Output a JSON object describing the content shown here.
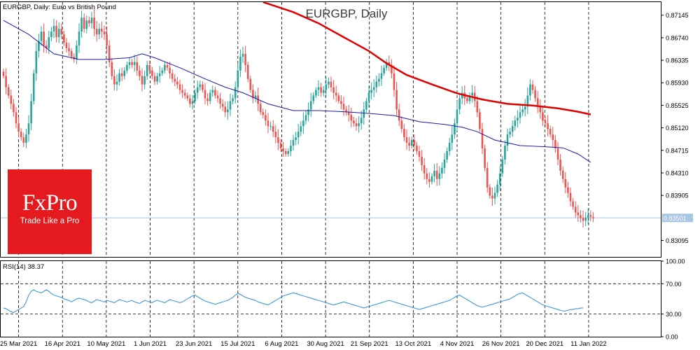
{
  "chart_data": {
    "type": "candlestick",
    "title": "EURGBP, Daily",
    "symbol_info": "EURGBP, Daily:  Euro vs British Pound",
    "y_axis_ticks": [
      "0.87145",
      "0.86740",
      "0.86335",
      "0.85930",
      "0.85525",
      "0.85120",
      "0.84715",
      "0.84310",
      "0.83905",
      "0.83501",
      "0.83095"
    ],
    "y_axis_tick_values": [
      0.87145,
      0.8674,
      0.86335,
      0.8593,
      0.85525,
      0.8512,
      0.84715,
      0.8431,
      0.83905,
      0.83501,
      0.83095
    ],
    "ylim": [
      0.828,
      0.8738
    ],
    "current_price": "0.83501",
    "current_price_value": 0.83501,
    "x_ticks": [
      "25 Mar 2021",
      "16 Apr 2021",
      "10 May 2021",
      "1 Jun 2021",
      "23 Jun 2021",
      "15 Jul 2021",
      "6 Aug 2021",
      "30 Aug 2021",
      "21 Sep 2021",
      "13 Oct 2021",
      "4 Nov 2021",
      "26 Nov 2021",
      "20 Dec 2021",
      "11 Jan 2022"
    ],
    "colors": {
      "up": "#26a69a",
      "down": "#ef5350",
      "ma_fast": "#1a1aa8",
      "ma_slow": "#e00000",
      "rsi": "#2b8fd8",
      "grid": "#000000",
      "price_line": "#a8c6e4",
      "price_label_bg": "#a8c6e4"
    },
    "closes": [
      0.8605,
      0.8585,
      0.857,
      0.8555,
      0.854,
      0.852,
      0.8505,
      0.8495,
      0.8485,
      0.85,
      0.852,
      0.856,
      0.861,
      0.865,
      0.8668,
      0.8685,
      0.866,
      0.8655,
      0.8675,
      0.8685,
      0.8695,
      0.8675,
      0.869,
      0.868,
      0.8665,
      0.8655,
      0.865,
      0.864,
      0.8635,
      0.866,
      0.8685,
      0.871,
      0.869,
      0.8705,
      0.87,
      0.871,
      0.869,
      0.868,
      0.869,
      0.8685,
      0.868,
      0.866,
      0.863,
      0.8605,
      0.859,
      0.8595,
      0.861,
      0.8605,
      0.8615,
      0.8625,
      0.863,
      0.8625,
      0.863,
      0.8615,
      0.8605,
      0.859,
      0.8605,
      0.8625,
      0.8615,
      0.8605,
      0.8595,
      0.8605,
      0.861,
      0.8615,
      0.8625,
      0.862,
      0.861,
      0.86,
      0.8595,
      0.859,
      0.858,
      0.8575,
      0.857,
      0.8565,
      0.8555,
      0.856,
      0.8575,
      0.8585,
      0.859,
      0.858,
      0.8565,
      0.856,
      0.8575,
      0.858,
      0.857,
      0.8565,
      0.8555,
      0.855,
      0.854,
      0.8545,
      0.856,
      0.8565,
      0.8585,
      0.8615,
      0.864,
      0.8645,
      0.8625,
      0.86,
      0.858,
      0.8565,
      0.857,
      0.8555,
      0.854,
      0.8535,
      0.8525,
      0.8515,
      0.8515,
      0.8505,
      0.8495,
      0.8485,
      0.8475,
      0.847,
      0.8465,
      0.847,
      0.848,
      0.849,
      0.8495,
      0.8505,
      0.8515,
      0.8525,
      0.8535,
      0.8545,
      0.856,
      0.857,
      0.858,
      0.8585,
      0.8575,
      0.858,
      0.859,
      0.8595,
      0.8585,
      0.8575,
      0.857,
      0.856,
      0.8555,
      0.8545,
      0.854,
      0.8535,
      0.8525,
      0.852,
      0.8515,
      0.852,
      0.853,
      0.8545,
      0.856,
      0.8575,
      0.858,
      0.8585,
      0.8595,
      0.86,
      0.861,
      0.862,
      0.863,
      0.8625,
      0.861,
      0.858,
      0.8545,
      0.8525,
      0.851,
      0.8495,
      0.8485,
      0.848,
      0.849,
      0.848,
      0.847,
      0.846,
      0.8445,
      0.843,
      0.842,
      0.8415,
      0.8425,
      0.8435,
      0.842,
      0.843,
      0.844,
      0.8455,
      0.847,
      0.8485,
      0.85,
      0.852,
      0.8545,
      0.8565,
      0.8575,
      0.8565,
      0.856,
      0.857,
      0.8575,
      0.856,
      0.854,
      0.851,
      0.8475,
      0.844,
      0.8405,
      0.839,
      0.8385,
      0.8395,
      0.841,
      0.843,
      0.8455,
      0.848,
      0.85,
      0.8505,
      0.8515,
      0.8525,
      0.853,
      0.854,
      0.8545,
      0.855,
      0.857,
      0.859,
      0.858,
      0.8565,
      0.855,
      0.854,
      0.8525,
      0.852,
      0.851,
      0.85,
      0.849,
      0.8475,
      0.8455,
      0.8435,
      0.842,
      0.8405,
      0.8395,
      0.838,
      0.837,
      0.836,
      0.8355,
      0.835,
      0.8345,
      0.835,
      0.8355,
      0.8352,
      0.835
    ],
    "ma_fast": [
      [
        0,
        0.8705
      ],
      [
        10,
        0.868
      ],
      [
        20,
        0.8645
      ],
      [
        30,
        0.8635
      ],
      [
        40,
        0.8635
      ],
      [
        50,
        0.8638
      ],
      [
        55,
        0.8645
      ],
      [
        60,
        0.8638
      ],
      [
        70,
        0.862
      ],
      [
        80,
        0.86
      ],
      [
        88,
        0.8585
      ],
      [
        95,
        0.8575
      ],
      [
        105,
        0.8555
      ],
      [
        115,
        0.8543
      ],
      [
        125,
        0.8543
      ],
      [
        135,
        0.8541
      ],
      [
        145,
        0.8538
      ],
      [
        155,
        0.8534
      ],
      [
        165,
        0.8523
      ],
      [
        175,
        0.8518
      ],
      [
        182,
        0.8513
      ],
      [
        188,
        0.8505
      ],
      [
        195,
        0.849
      ],
      [
        205,
        0.848
      ],
      [
        215,
        0.8478
      ],
      [
        222,
        0.8476
      ],
      [
        228,
        0.8465
      ],
      [
        233,
        0.845
      ]
    ],
    "ma_slow": [
      [
        103,
        0.8738
      ],
      [
        115,
        0.872
      ],
      [
        125,
        0.87
      ],
      [
        135,
        0.8675
      ],
      [
        145,
        0.865
      ],
      [
        152,
        0.8628
      ],
      [
        160,
        0.8607
      ],
      [
        170,
        0.859
      ],
      [
        180,
        0.8574
      ],
      [
        190,
        0.8563
      ],
      [
        200,
        0.8555
      ],
      [
        210,
        0.8552
      ],
      [
        220,
        0.8547
      ],
      [
        228,
        0.8541
      ],
      [
        233,
        0.8536
      ]
    ],
    "rsi": {
      "label": "RSI(14) 38.37",
      "value": 38.37,
      "levels": [
        70,
        30
      ],
      "ticks": [
        "100.00",
        "70.00",
        "30.00",
        "0.00"
      ],
      "tick_values": [
        100,
        70,
        30,
        0
      ],
      "ylim": [
        0,
        100
      ],
      "values": [
        38,
        37,
        35,
        33,
        32,
        34,
        36,
        38,
        40,
        46,
        55,
        60,
        62,
        60,
        59,
        58,
        60,
        62,
        60,
        57,
        55,
        54,
        53,
        52,
        50,
        49,
        48,
        46,
        48,
        50,
        51,
        50,
        49,
        48,
        46,
        45,
        47,
        49,
        48,
        47,
        46,
        48,
        47,
        46,
        45,
        47,
        49,
        48,
        47,
        46,
        47,
        48,
        46,
        45,
        44,
        46,
        48,
        47,
        46,
        45,
        47,
        48,
        47,
        46,
        45,
        47,
        49,
        48,
        47,
        46,
        45,
        46,
        48,
        50,
        52,
        54,
        55,
        53,
        51,
        49,
        47,
        46,
        45,
        44,
        43,
        44,
        45,
        46,
        47,
        48,
        50,
        52,
        55,
        57,
        56,
        54,
        52,
        51,
        50,
        49,
        48,
        46,
        45,
        44,
        43,
        42,
        44,
        46,
        48,
        50,
        52,
        54,
        55,
        56,
        57,
        58,
        57,
        56,
        55,
        54,
        53,
        52,
        51,
        50,
        49,
        48,
        47,
        46,
        45,
        44,
        43,
        42,
        43,
        44,
        45,
        46,
        45,
        44,
        43,
        42,
        41,
        40,
        39,
        38,
        39,
        40,
        41,
        42,
        43,
        44,
        45,
        46,
        47,
        48,
        47,
        46,
        45,
        44,
        43,
        42,
        41,
        40,
        39,
        38,
        37,
        36,
        37,
        38,
        39,
        40,
        41,
        42,
        43,
        44,
        45,
        46,
        47,
        48,
        50,
        52,
        54,
        55,
        53,
        51,
        49,
        47,
        45,
        43,
        41,
        40,
        39,
        40,
        41,
        42,
        43,
        44,
        45,
        46,
        47,
        48,
        49,
        50,
        52,
        54,
        56,
        57,
        58,
        56,
        54,
        52,
        50,
        48,
        46,
        44,
        42,
        41,
        40,
        39,
        38,
        37,
        36,
        35,
        34,
        34,
        35,
        36,
        36,
        37,
        37,
        38,
        38
      ]
    }
  },
  "logo": {
    "name": "FxPro",
    "tagline": "Trade Like a Pro"
  }
}
